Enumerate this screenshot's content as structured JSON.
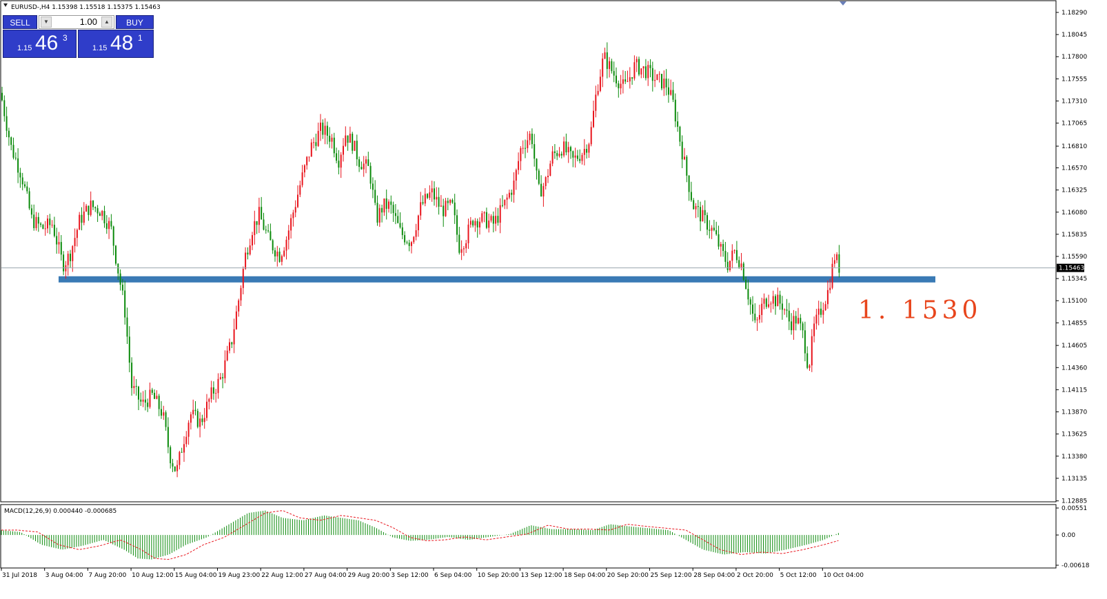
{
  "header": {
    "symbol_line": "EURUSD-,H4  1.15398 1.15518 1.15375 1.15463"
  },
  "trade_panel": {
    "sell_label": "SELL",
    "buy_label": "BUY",
    "lot_value": "1.00",
    "sell_price": {
      "small": "1.15",
      "big": "46",
      "sup": "3"
    },
    "buy_price": {
      "small": "1.15",
      "big": "48",
      "sup": "1"
    }
  },
  "annotation": {
    "level_text": "1. 1530",
    "level_value": 1.153,
    "color": "#e8451c"
  },
  "colors": {
    "bull": "#e8141c",
    "bear": "#0a8a0a",
    "level_zone": "#3a7ab5",
    "macd_hist": "#0a8a0a",
    "macd_signal": "#e8141c"
  },
  "chart_data": [
    {
      "type": "candlestick",
      "title": "EURUSD-,H4",
      "current_price": 1.15463,
      "current_price_label": "1.15463",
      "ylim": [
        1.1289,
        1.1829
      ],
      "y_ticks": [
        "1.18290",
        "1.18045",
        "1.17800",
        "1.17555",
        "1.17310",
        "1.17065",
        "1.16810",
        "1.16570",
        "1.16325",
        "1.16080",
        "1.15835",
        "1.15590",
        "1.15345",
        "1.15100",
        "1.14855",
        "1.14605",
        "1.14360",
        "1.14115",
        "1.13870",
        "1.13625",
        "1.13380",
        "1.13135",
        "1.12885"
      ],
      "x_ticks": [
        "31 Jul 2018",
        "3 Aug 04:00",
        "7 Aug 20:00",
        "10 Aug 12:00",
        "15 Aug 04:00",
        "19 Aug 23:00",
        "22 Aug 12:00",
        "27 Aug 04:00",
        "29 Aug 20:00",
        "3 Sep 12:00",
        "6 Sep 04:00",
        "10 Sep 20:00",
        "13 Sep 12:00",
        "18 Sep 04:00",
        "20 Sep 20:00",
        "25 Sep 12:00",
        "28 Sep 04:00",
        "2 Oct 20:00",
        "5 Oct 12:00",
        "10 Oct 04:00"
      ],
      "close_path": [
        [
          0,
          1.174
        ],
        [
          15,
          1.168
        ],
        [
          30,
          1.165
        ],
        [
          45,
          1.16
        ],
        [
          60,
          1.159
        ],
        [
          75,
          1.1595
        ],
        [
          90,
          1.155
        ],
        [
          100,
          1.156
        ],
        [
          115,
          1.16
        ],
        [
          130,
          1.1615
        ],
        [
          145,
          1.161
        ],
        [
          160,
          1.159
        ],
        [
          170,
          1.1545
        ],
        [
          180,
          1.15
        ],
        [
          190,
          1.1415
        ],
        [
          205,
          1.1395
        ],
        [
          220,
          1.1405
        ],
        [
          235,
          1.1385
        ],
        [
          245,
          1.134
        ],
        [
          255,
          1.132
        ],
        [
          265,
          1.1355
        ],
        [
          275,
          1.1385
        ],
        [
          290,
          1.1375
        ],
        [
          305,
          1.1405
        ],
        [
          320,
          1.1425
        ],
        [
          335,
          1.1465
        ],
        [
          345,
          1.151
        ],
        [
          355,
          1.156
        ],
        [
          365,
          1.159
        ],
        [
          375,
          1.1605
        ],
        [
          390,
          1.1575
        ],
        [
          405,
          1.156
        ],
        [
          415,
          1.158
        ],
        [
          425,
          1.161
        ],
        [
          435,
          1.164
        ],
        [
          450,
          1.168
        ],
        [
          465,
          1.17
        ],
        [
          480,
          1.169
        ],
        [
          490,
          1.1665
        ],
        [
          500,
          1.1695
        ],
        [
          510,
          1.1685
        ],
        [
          520,
          1.1665
        ],
        [
          535,
          1.1655
        ],
        [
          545,
          1.16
        ],
        [
          555,
          1.1615
        ],
        [
          565,
          1.1615
        ],
        [
          580,
          1.1585
        ],
        [
          595,
          1.1575
        ],
        [
          610,
          1.1615
        ],
        [
          625,
          1.163
        ],
        [
          640,
          1.161
        ],
        [
          655,
          1.1615
        ],
        [
          665,
          1.157
        ],
        [
          675,
          1.158
        ],
        [
          685,
          1.16
        ],
        [
          700,
          1.16
        ],
        [
          715,
          1.1595
        ],
        [
          730,
          1.1615
        ],
        [
          745,
          1.164
        ],
        [
          755,
          1.168
        ],
        [
          770,
          1.1695
        ],
        [
          780,
          1.163
        ],
        [
          790,
          1.164
        ],
        [
          800,
          1.167
        ],
        [
          815,
          1.168
        ],
        [
          830,
          1.1665
        ],
        [
          845,
          1.1675
        ],
        [
          855,
          1.169
        ],
        [
          865,
          1.1745
        ],
        [
          875,
          1.178
        ],
        [
          890,
          1.176
        ],
        [
          905,
          1.1745
        ],
        [
          920,
          1.177
        ],
        [
          935,
          1.1765
        ],
        [
          950,
          1.1755
        ],
        [
          965,
          1.175
        ],
        [
          975,
          1.173
        ],
        [
          985,
          1.169
        ],
        [
          995,
          1.165
        ],
        [
          1005,
          1.1615
        ],
        [
          1015,
          1.1605
        ],
        [
          1025,
          1.1595
        ],
        [
          1035,
          1.1585
        ],
        [
          1045,
          1.1565
        ],
        [
          1055,
          1.155
        ],
        [
          1065,
          1.1565
        ],
        [
          1075,
          1.155
        ],
        [
          1085,
          1.1515
        ],
        [
          1095,
          1.148
        ],
        [
          1105,
          1.1505
        ],
        [
          1115,
          1.1515
        ],
        [
          1125,
          1.151
        ],
        [
          1135,
          1.1505
        ],
        [
          1145,
          1.1485
        ],
        [
          1155,
          1.149
        ],
        [
          1165,
          1.147
        ],
        [
          1172,
          1.1435
        ],
        [
          1180,
          1.148
        ],
        [
          1190,
          1.15
        ],
        [
          1200,
          1.152
        ],
        [
          1210,
          1.156
        ],
        [
          1217,
          1.1546
        ]
      ],
      "support_zone": {
        "low": 1.1527,
        "high": 1.1534,
        "label": "1. 1530"
      }
    },
    {
      "type": "bar",
      "title": "MACD(12,26,9) 0.000440 -0.000685",
      "ylim": [
        -0.00618,
        0.00551
      ],
      "y_ticks": [
        "0.00551",
        "0.00",
        "-0.00618"
      ],
      "macd_last": 0.00044,
      "signal_last": -0.000685,
      "histogram_path": [
        [
          0,
          0.001
        ],
        [
          30,
          0.0006
        ],
        [
          60,
          -0.002
        ],
        [
          90,
          -0.003
        ],
        [
          120,
          -0.0022
        ],
        [
          150,
          -0.001
        ],
        [
          180,
          -0.003
        ],
        [
          200,
          -0.0048
        ],
        [
          220,
          -0.005
        ],
        [
          245,
          -0.004
        ],
        [
          270,
          -0.002
        ],
        [
          300,
          -0.0005
        ],
        [
          330,
          0.002
        ],
        [
          360,
          0.0045
        ],
        [
          385,
          0.005
        ],
        [
          410,
          0.0035
        ],
        [
          440,
          0.003
        ],
        [
          470,
          0.004
        ],
        [
          495,
          0.0035
        ],
        [
          520,
          0.003
        ],
        [
          545,
          0.0015
        ],
        [
          570,
          -0.0005
        ],
        [
          595,
          -0.0012
        ],
        [
          620,
          -0.001
        ],
        [
          650,
          -0.0004
        ],
        [
          680,
          -0.001
        ],
        [
          710,
          -0.0004
        ],
        [
          740,
          0.0002
        ],
        [
          770,
          0.002
        ],
        [
          800,
          0.0012
        ],
        [
          830,
          0.0012
        ],
        [
          860,
          0.001
        ],
        [
          885,
          0.0022
        ],
        [
          910,
          0.0018
        ],
        [
          940,
          0.0014
        ],
        [
          970,
          0.001
        ],
        [
          995,
          -0.001
        ],
        [
          1020,
          -0.003
        ],
        [
          1050,
          -0.004
        ],
        [
          1080,
          -0.0035
        ],
        [
          1110,
          -0.0038
        ],
        [
          1140,
          -0.003
        ],
        [
          1170,
          -0.002
        ],
        [
          1195,
          -0.001
        ],
        [
          1217,
          0.00044
        ]
      ]
    }
  ]
}
